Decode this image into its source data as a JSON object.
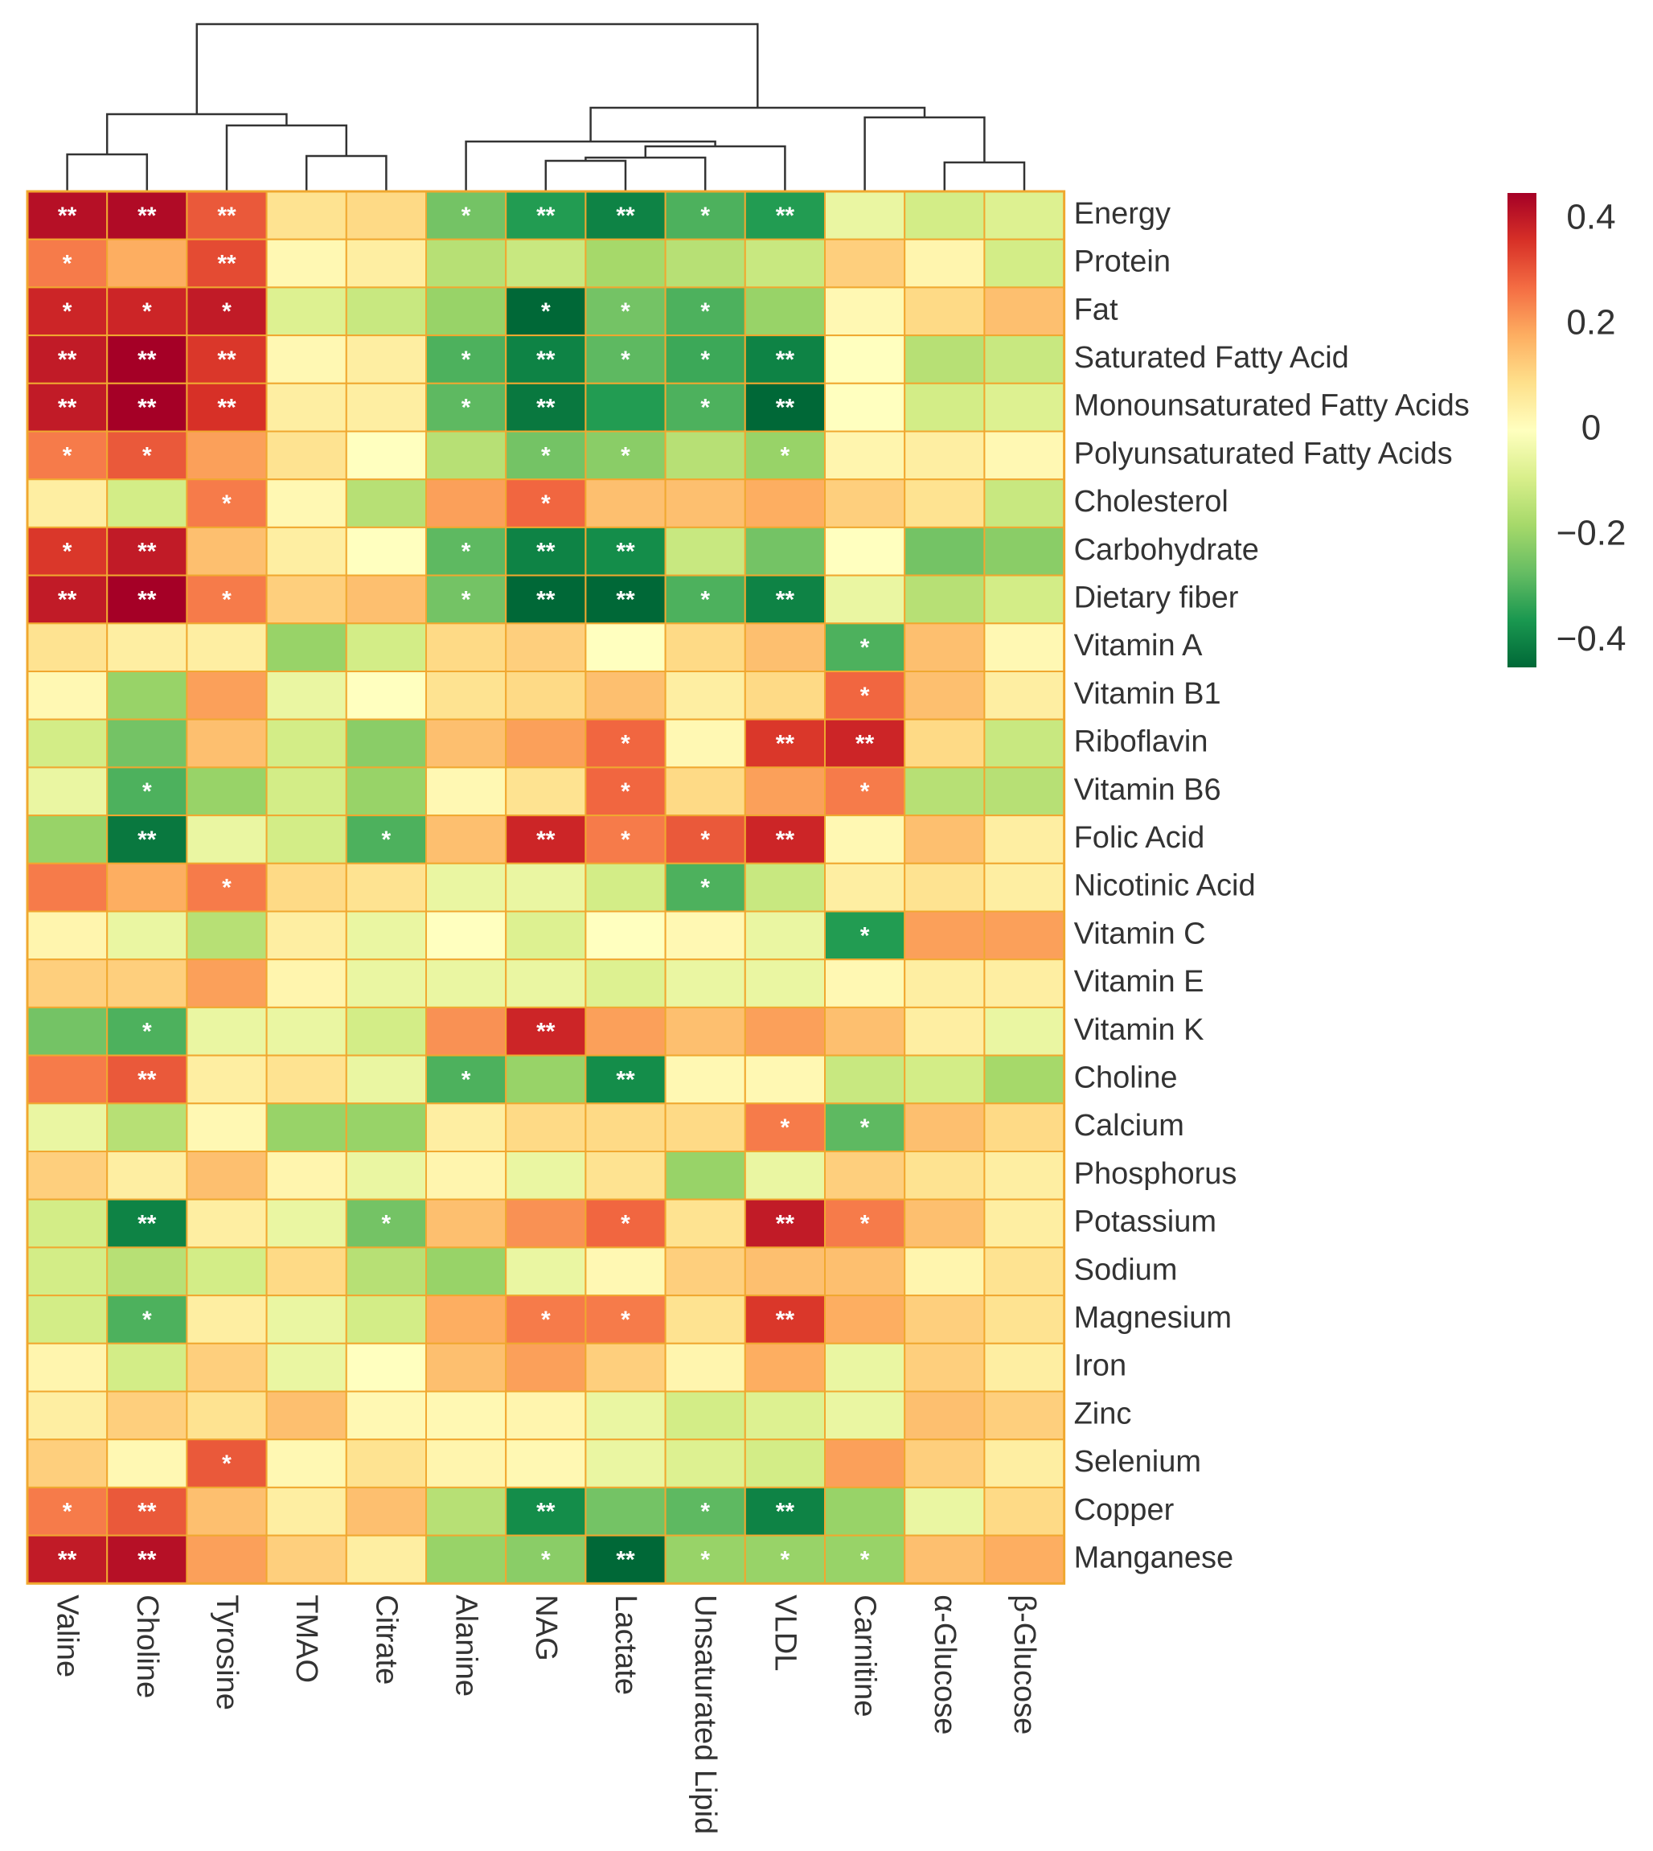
{
  "chart_data": {
    "type": "heatmap",
    "title": "",
    "columns": [
      "Valine",
      "Choline",
      "Tyrosine",
      "TMAO",
      "Citrate",
      "Alanine",
      "NAG",
      "Lactate",
      "Unsaturated Lipid",
      "VLDL",
      "Carnitine",
      "α-Glucose",
      "β-Glucose"
    ],
    "rows": [
      "Energy",
      "Protein",
      "Fat",
      "Saturated Fatty Acid",
      "Monounsaturated Fatty Acids",
      "Polyunsaturated Fatty Acids",
      "Cholesterol",
      "Carbohydrate",
      "Dietary fiber",
      "Vitamin A",
      "Vitamin B1",
      "Riboflavin",
      "Vitamin B6",
      "Folic Acid",
      "Nicotinic Acid",
      "Vitamin C",
      "Vitamin E",
      "Vitamin K",
      "Choline",
      "Calcium",
      "Phosphorus",
      "Potassium",
      "Sodium",
      "Magnesium",
      "Iron",
      "Zinc",
      "Selenium",
      "Copper",
      "Manganese"
    ],
    "values": [
      [
        0.42,
        0.43,
        0.3,
        0.08,
        0.1,
        -0.25,
        -0.35,
        -0.4,
        -0.3,
        -0.35,
        -0.05,
        -0.1,
        -0.08
      ],
      [
        0.25,
        0.18,
        0.32,
        0.02,
        0.05,
        -0.15,
        -0.12,
        -0.18,
        -0.15,
        -0.12,
        0.12,
        0.03,
        -0.1
      ],
      [
        0.38,
        0.38,
        0.4,
        -0.08,
        -0.12,
        -0.2,
        -0.45,
        -0.25,
        -0.3,
        -0.2,
        0.02,
        0.1,
        0.15
      ],
      [
        0.4,
        0.45,
        0.35,
        0.02,
        0.05,
        -0.3,
        -0.4,
        -0.28,
        -0.32,
        -0.4,
        0.0,
        -0.15,
        -0.12
      ],
      [
        0.4,
        0.46,
        0.36,
        0.05,
        0.05,
        -0.28,
        -0.42,
        -0.35,
        -0.3,
        -0.45,
        0.0,
        -0.1,
        -0.08
      ],
      [
        0.25,
        0.3,
        0.2,
        0.08,
        0.0,
        -0.15,
        -0.25,
        -0.22,
        -0.15,
        -0.2,
        0.03,
        0.05,
        0.02
      ],
      [
        0.05,
        -0.1,
        0.25,
        0.02,
        -0.15,
        0.2,
        0.28,
        0.15,
        0.15,
        0.18,
        0.12,
        0.08,
        -0.12
      ],
      [
        0.35,
        0.4,
        0.15,
        0.05,
        0.0,
        -0.28,
        -0.4,
        -0.38,
        -0.12,
        -0.25,
        0.0,
        -0.25,
        -0.22
      ],
      [
        0.4,
        0.46,
        0.25,
        0.12,
        0.15,
        -0.25,
        -0.48,
        -0.48,
        -0.3,
        -0.4,
        -0.05,
        -0.15,
        -0.1
      ],
      [
        0.08,
        0.05,
        0.05,
        -0.2,
        -0.1,
        0.1,
        0.12,
        0.0,
        0.1,
        0.15,
        -0.3,
        0.15,
        0.02
      ],
      [
        0.02,
        -0.2,
        0.2,
        -0.05,
        0.0,
        0.08,
        0.1,
        0.15,
        0.05,
        0.1,
        0.28,
        0.15,
        0.05
      ],
      [
        -0.1,
        -0.25,
        0.15,
        -0.1,
        -0.22,
        0.15,
        0.2,
        0.28,
        0.02,
        0.35,
        0.38,
        0.1,
        -0.12
      ],
      [
        -0.05,
        -0.3,
        -0.2,
        -0.1,
        -0.2,
        0.02,
        0.08,
        0.28,
        0.1,
        0.2,
        0.25,
        -0.15,
        -0.15
      ],
      [
        -0.2,
        -0.42,
        -0.05,
        -0.1,
        -0.3,
        0.15,
        0.38,
        0.25,
        0.3,
        0.38,
        0.02,
        0.15,
        0.05
      ],
      [
        0.25,
        0.18,
        0.25,
        0.1,
        0.08,
        -0.05,
        -0.05,
        -0.1,
        -0.3,
        -0.12,
        0.05,
        0.08,
        0.05
      ],
      [
        0.03,
        -0.05,
        -0.15,
        0.05,
        -0.05,
        0.0,
        -0.08,
        0.0,
        0.02,
        -0.05,
        -0.35,
        0.2,
        0.2
      ],
      [
        0.12,
        0.12,
        0.2,
        0.03,
        -0.05,
        -0.05,
        -0.05,
        -0.08,
        -0.05,
        -0.05,
        0.02,
        0.05,
        0.05
      ],
      [
        -0.25,
        -0.3,
        -0.05,
        -0.05,
        -0.1,
        0.22,
        0.38,
        0.2,
        0.15,
        0.2,
        0.15,
        0.05,
        -0.05
      ],
      [
        0.25,
        0.3,
        0.05,
        0.08,
        -0.05,
        -0.3,
        -0.2,
        -0.38,
        0.02,
        0.02,
        -0.12,
        -0.1,
        -0.18
      ],
      [
        -0.05,
        -0.15,
        0.02,
        -0.2,
        -0.2,
        0.05,
        0.1,
        0.1,
        0.1,
        0.25,
        -0.28,
        0.15,
        0.1
      ],
      [
        0.12,
        0.05,
        0.15,
        0.03,
        -0.05,
        0.03,
        -0.05,
        0.08,
        -0.2,
        -0.05,
        0.12,
        0.08,
        0.05
      ],
      [
        -0.1,
        -0.4,
        0.05,
        -0.05,
        -0.25,
        0.15,
        0.22,
        0.28,
        0.08,
        0.4,
        0.25,
        0.15,
        0.05
      ],
      [
        -0.1,
        -0.15,
        -0.1,
        0.1,
        -0.15,
        -0.2,
        -0.05,
        0.02,
        0.12,
        0.15,
        0.15,
        0.03,
        0.08
      ],
      [
        -0.1,
        -0.3,
        0.05,
        -0.05,
        -0.1,
        0.18,
        0.25,
        0.25,
        0.08,
        0.35,
        0.18,
        0.12,
        0.08
      ],
      [
        0.03,
        -0.1,
        0.12,
        -0.05,
        0.0,
        0.15,
        0.2,
        0.12,
        0.03,
        0.18,
        -0.05,
        0.12,
        0.05
      ],
      [
        0.05,
        0.12,
        0.08,
        0.15,
        0.02,
        0.02,
        0.03,
        -0.05,
        -0.1,
        -0.08,
        -0.05,
        0.15,
        0.12
      ],
      [
        0.12,
        0.02,
        0.3,
        0.02,
        0.08,
        0.03,
        0.02,
        -0.05,
        -0.08,
        -0.1,
        0.2,
        0.12,
        0.05
      ],
      [
        0.25,
        0.3,
        0.15,
        0.05,
        0.15,
        -0.15,
        -0.38,
        -0.25,
        -0.28,
        -0.4,
        -0.2,
        -0.05,
        0.1
      ],
      [
        0.4,
        0.42,
        0.2,
        0.12,
        0.05,
        -0.2,
        -0.22,
        -0.48,
        -0.2,
        -0.2,
        -0.2,
        0.15,
        0.18
      ]
    ],
    "significance": [
      [
        "**",
        "**",
        "**",
        "",
        "",
        "*",
        "**",
        "**",
        "*",
        "**",
        "",
        "",
        ""
      ],
      [
        "*",
        "",
        "**",
        "",
        "",
        "",
        "",
        "",
        "",
        "",
        "",
        "",
        ""
      ],
      [
        "*",
        "*",
        "*",
        "",
        "",
        "",
        "*",
        "*",
        "*",
        "",
        "",
        "",
        ""
      ],
      [
        "**",
        "**",
        "**",
        "",
        "",
        "*",
        "**",
        "*",
        "*",
        "**",
        "",
        "",
        ""
      ],
      [
        "**",
        "**",
        "**",
        "",
        "",
        "*",
        "**",
        "",
        "*",
        "**",
        "",
        "",
        ""
      ],
      [
        "*",
        "*",
        "",
        "",
        "",
        "",
        "*",
        "*",
        "",
        "*",
        "",
        "",
        ""
      ],
      [
        "",
        "",
        "*",
        "",
        "",
        "",
        "*",
        "",
        "",
        "",
        "",
        "",
        ""
      ],
      [
        "*",
        "**",
        "",
        "",
        "",
        "*",
        "**",
        "**",
        "",
        "",
        "",
        "",
        ""
      ],
      [
        "**",
        "**",
        "*",
        "",
        "",
        "*",
        "**",
        "**",
        "*",
        "**",
        "",
        "",
        ""
      ],
      [
        "",
        "",
        "",
        "",
        "",
        "",
        "",
        "",
        "",
        "",
        "*",
        "",
        ""
      ],
      [
        "",
        "",
        "",
        "",
        "",
        "",
        "",
        "",
        "",
        "",
        "*",
        "",
        ""
      ],
      [
        "",
        "",
        "",
        "",
        "",
        "",
        "",
        "*",
        "",
        "**",
        "**",
        "",
        ""
      ],
      [
        "",
        "*",
        "",
        "",
        "",
        "",
        "",
        "*",
        "",
        "",
        "*",
        "",
        ""
      ],
      [
        "",
        "**",
        "",
        "",
        "*",
        "",
        "**",
        "*",
        "*",
        "**",
        "",
        "",
        ""
      ],
      [
        "",
        "",
        "*",
        "",
        "",
        "",
        "",
        "",
        "*",
        "",
        "",
        "",
        ""
      ],
      [
        "",
        "",
        "",
        "",
        "",
        "",
        "",
        "",
        "",
        "",
        "*",
        "",
        ""
      ],
      [
        "",
        "",
        "",
        "",
        "",
        "",
        "",
        "",
        "",
        "",
        "",
        "",
        ""
      ],
      [
        "",
        "*",
        "",
        "",
        "",
        "",
        "**",
        "",
        "",
        "",
        "",
        "",
        ""
      ],
      [
        "",
        "**",
        "",
        "",
        "",
        "*",
        "",
        "**",
        "",
        "",
        "",
        "",
        ""
      ],
      [
        "",
        "",
        "",
        "",
        "",
        "",
        "",
        "",
        "",
        "*",
        "*",
        "",
        ""
      ],
      [
        "",
        "",
        "",
        "",
        "",
        "",
        "",
        "",
        "",
        "",
        "",
        "",
        ""
      ],
      [
        "",
        "**",
        "",
        "",
        "*",
        "",
        "",
        "*",
        "",
        "**",
        "*",
        "",
        ""
      ],
      [
        "",
        "",
        "",
        "",
        "",
        "",
        "",
        "",
        "",
        "",
        "",
        "",
        ""
      ],
      [
        "",
        "*",
        "",
        "",
        "",
        "",
        "*",
        "*",
        "",
        "**",
        "",
        "",
        ""
      ],
      [
        "",
        "",
        "",
        "",
        "",
        "",
        "",
        "",
        "",
        "",
        "",
        "",
        ""
      ],
      [
        "",
        "",
        "",
        "",
        "",
        "",
        "",
        "",
        "",
        "",
        "",
        "",
        ""
      ],
      [
        "",
        "",
        "*",
        "",
        "",
        "",
        "",
        "",
        "",
        "",
        "",
        "",
        ""
      ],
      [
        "*",
        "**",
        "",
        "",
        "",
        "",
        "**",
        "",
        "*",
        "**",
        "",
        "",
        ""
      ],
      [
        "**",
        "**",
        "",
        "",
        "",
        "",
        "*",
        "**",
        "*",
        "*",
        "*",
        "",
        ""
      ]
    ],
    "color_scale": {
      "min": -0.45,
      "max": 0.45,
      "stops": [
        "#006837",
        "#1a9850",
        "#66bd63",
        "#a6d96a",
        "#d9ef8b",
        "#ffffbf",
        "#fee08b",
        "#fdae61",
        "#f46d43",
        "#d73027",
        "#a50026"
      ]
    },
    "colorbar_ticks": [
      {
        "value": 0.4,
        "label": "0.4"
      },
      {
        "value": 0.2,
        "label": "0.2"
      },
      {
        "value": 0,
        "label": "0"
      },
      {
        "value": -0.2,
        "label": "−0.2"
      },
      {
        "value": -0.4,
        "label": "−0.4"
      }
    ],
    "cell_border_color": "#f0a830",
    "dendrogram_color": "#333333"
  }
}
